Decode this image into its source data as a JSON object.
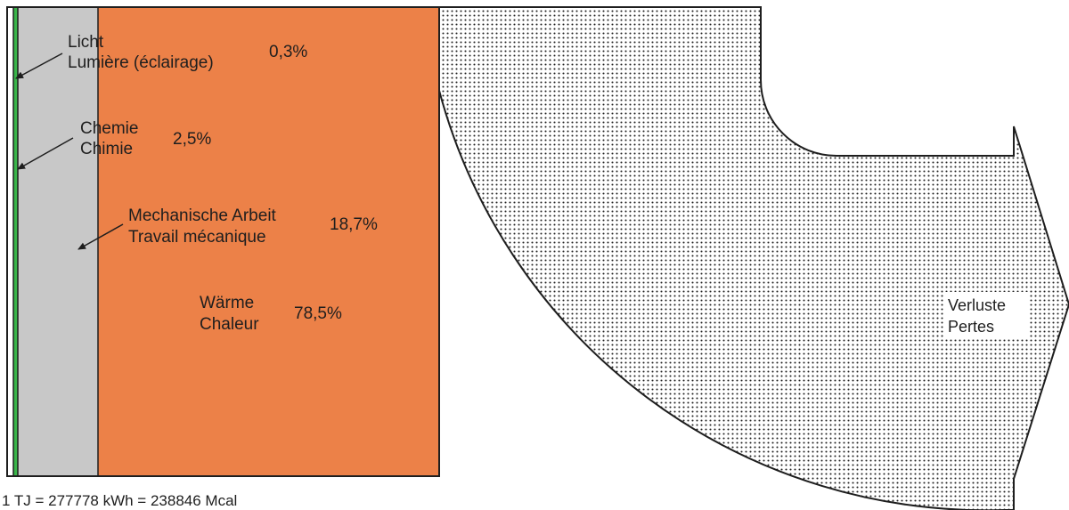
{
  "categories": [
    {
      "id": "light",
      "label_de": "Licht",
      "label_fr": "Lumière (éclairage)",
      "percent_text": "0,3%",
      "value": 0.3,
      "color": "#39b54a"
    },
    {
      "id": "chem",
      "label_de": "Chemie",
      "label_fr": "Chimie",
      "percent_text": "2,5%",
      "value": 2.5,
      "color": "#ffffff"
    },
    {
      "id": "mech",
      "label_de": "Mechanische Arbeit",
      "label_fr": "Travail mécanique",
      "percent_text": "18,7%",
      "value": 18.7,
      "color": "#c8c8c8"
    },
    {
      "id": "heat",
      "label_de": "Wärme",
      "label_fr": "Chaleur",
      "percent_text": "78,5%",
      "value": 78.5,
      "color": "#ec8148"
    }
  ],
  "losses": {
    "label_de": "Verluste",
    "label_fr": "Pertes"
  },
  "footnote": "1 TJ = 277778 kWh = 238846 Mcal",
  "colors": {
    "outline": "#1e1e1e",
    "heat": "#ec8148",
    "mech": "#c8c8c8",
    "light": "#39b54a",
    "dots": "#222222"
  }
}
